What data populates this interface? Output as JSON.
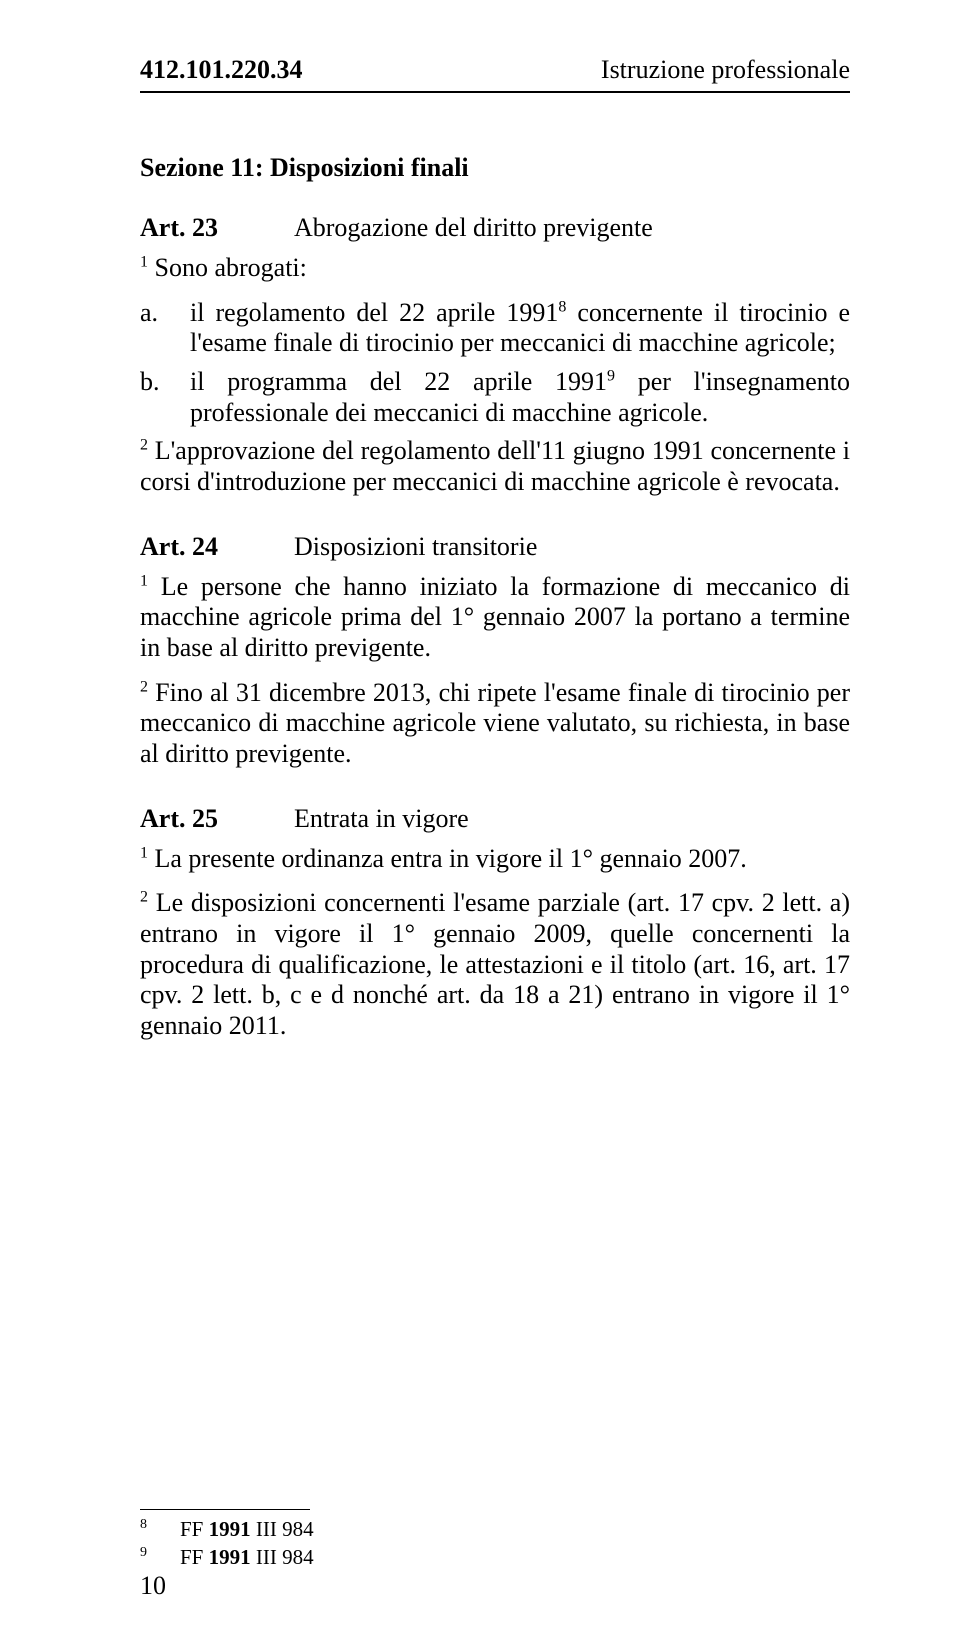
{
  "header": {
    "doc_number": "412.101.220.34",
    "category": "Istruzione professionale"
  },
  "section": {
    "title": "Sezione 11: Disposizioni finali"
  },
  "art23": {
    "label": "Art. 23",
    "title": "Abrogazione del diritto previgente",
    "p1_sup": "1",
    "p1": " Sono abrogati:",
    "item_a_marker": "a.",
    "item_a_text_before": "il regolamento del 22 aprile 1991",
    "item_a_sup": "8",
    "item_a_text_after": " concernente il tirocinio e l'esame finale di tirocinio per meccanici di macchine agricole;",
    "item_b_marker": "b.",
    "item_b_text_before": "il programma del 22 aprile 1991",
    "item_b_sup": "9",
    "item_b_text_after": " per l'insegnamento professionale dei meccanici di macchine agricole.",
    "p2_sup": "2",
    "p2": " L'approvazione del regolamento dell'11 giugno 1991 concernente i corsi d'introduzione per meccanici di macchine agricole è revocata."
  },
  "art24": {
    "label": "Art. 24",
    "title": "Disposizioni transitorie",
    "p1_sup": "1",
    "p1": " Le persone che hanno iniziato la formazione di meccanico di macchine agricole prima del 1° gennaio 2007 la portano a termine in base al diritto previgente.",
    "p2_sup": "2",
    "p2": " Fino al 31 dicembre 2013, chi ripete l'esame finale di tirocinio per meccanico di macchine agricole viene valutato, su richiesta, in base al diritto previgente."
  },
  "art25": {
    "label": "Art. 25",
    "title": "Entrata in vigore",
    "p1_sup": "1",
    "p1": " La presente ordinanza entra in vigore il 1° gennaio 2007.",
    "p2_sup": "2",
    "p2": " Le disposizioni concernenti l'esame parziale (art. 17 cpv. 2 lett. a) entrano in vigore il 1° gennaio 2009, quelle concernenti la procedura di qualificazione, le attestazioni e il titolo (art. 16, art. 17 cpv. 2 lett. b, c e d nonché art. da 18 a 21) entrano in vigore il 1° gennaio 2011."
  },
  "footnotes": {
    "fn8_num": "8",
    "fn8_text": "FF 1991 III 984",
    "fn9_num": "9",
    "fn9_text": "FF 1991 III 984"
  },
  "page_number": "10"
}
